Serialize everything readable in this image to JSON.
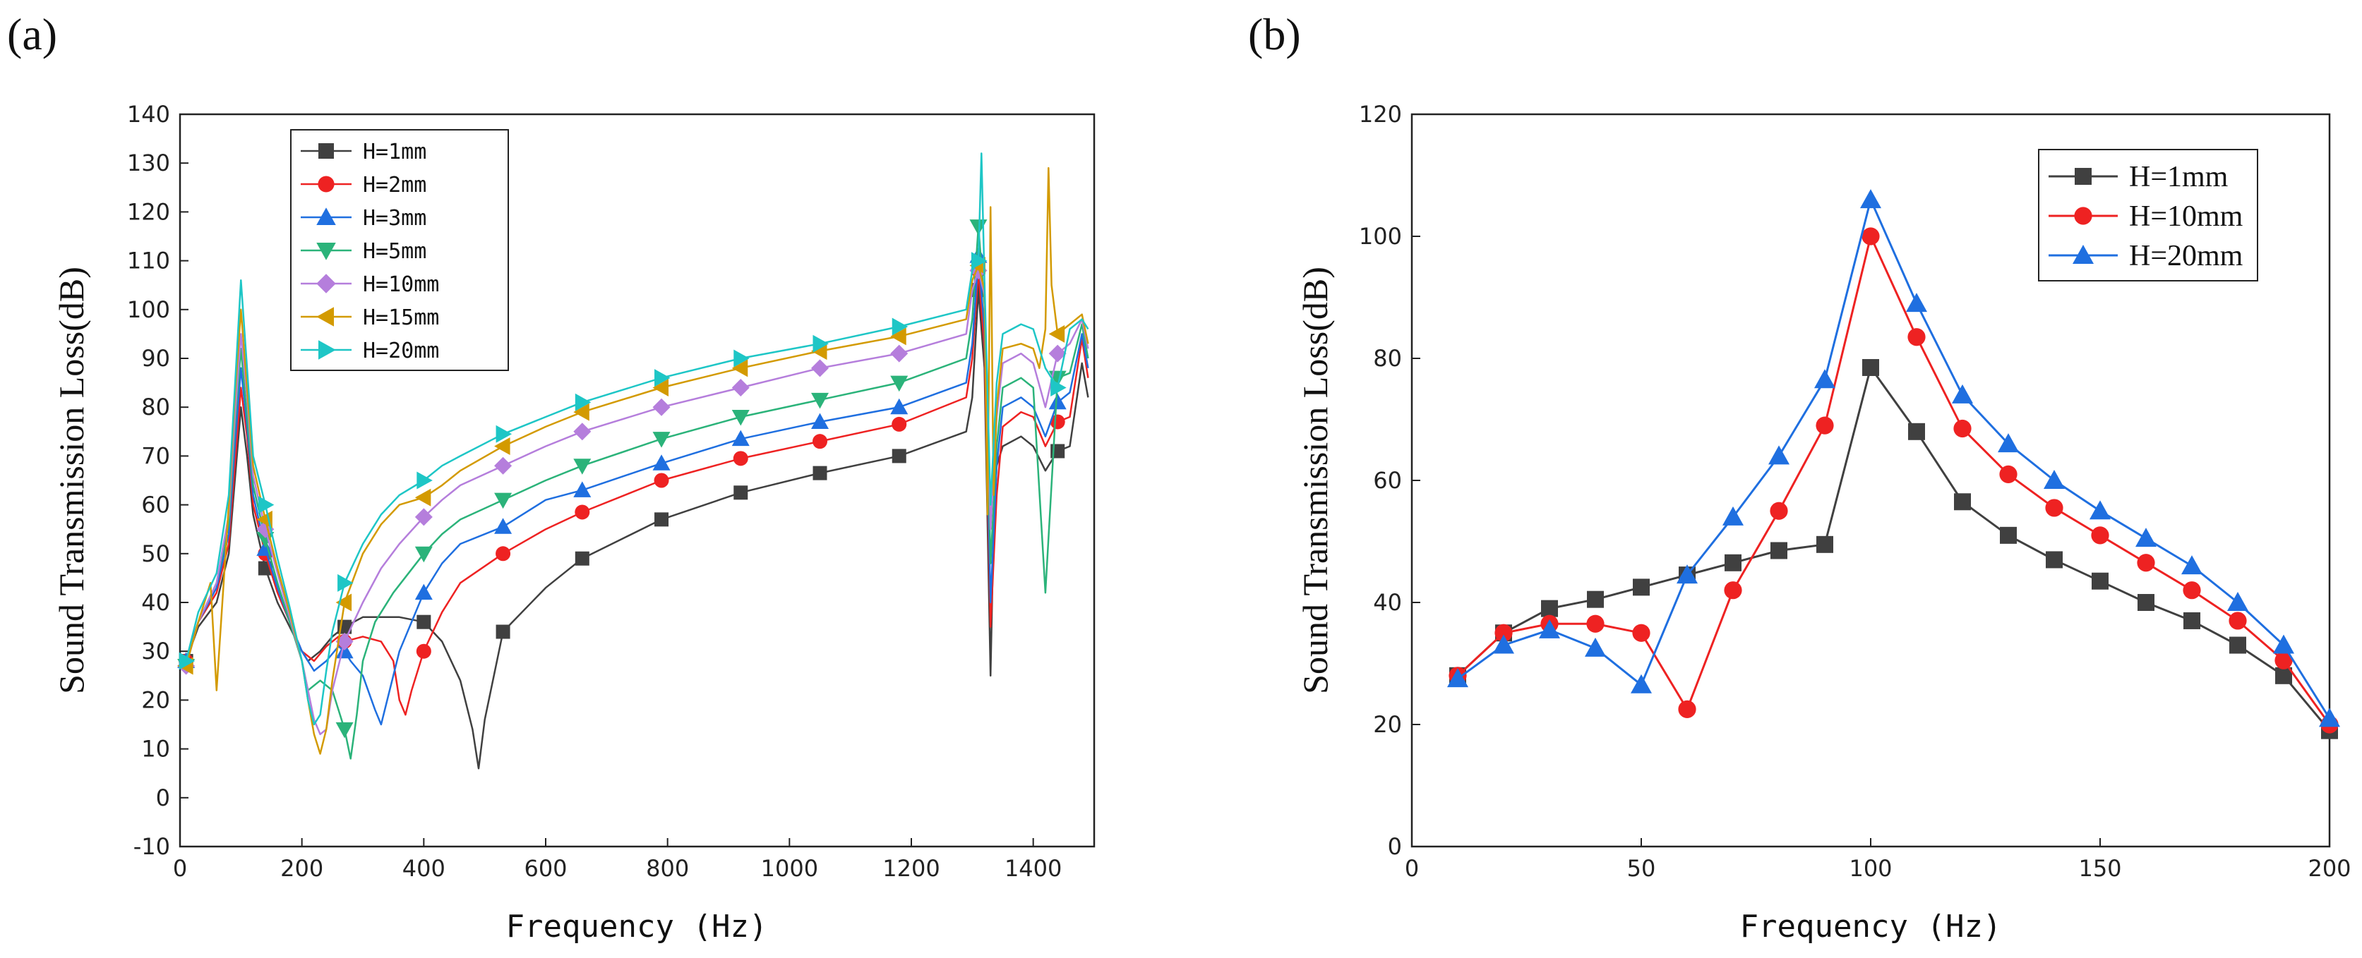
{
  "figure": {
    "panel_a_label": "(a)",
    "panel_b_label": "(b)"
  },
  "chart_data": [
    {
      "panel": "(a)",
      "type": "line",
      "xlabel": "Frequency (Hz)",
      "ylabel": "Sound Transmission Loss(dB)",
      "xlim": [
        0,
        1500
      ],
      "ylim": [
        -10,
        140
      ],
      "xticks": [
        0,
        200,
        400,
        600,
        800,
        1000,
        1200,
        1400
      ],
      "yticks": [
        -10,
        0,
        10,
        20,
        30,
        40,
        50,
        60,
        70,
        80,
        90,
        100,
        110,
        120,
        130,
        140
      ],
      "legend_position": "top-left",
      "marker_x": [
        10,
        140,
        270,
        400,
        530,
        660,
        790,
        920,
        1050,
        1180,
        1310,
        1440
      ],
      "series": [
        {
          "name": "H=1mm",
          "color": "#404040",
          "marker": "square",
          "x": [
            10,
            30,
            60,
            80,
            90,
            100,
            110,
            120,
            140,
            160,
            180,
            200,
            210,
            230,
            250,
            270,
            300,
            330,
            360,
            400,
            430,
            460,
            480,
            490,
            500,
            530,
            600,
            660,
            790,
            920,
            1050,
            1180,
            1290,
            1300,
            1310,
            1320,
            1330,
            1335,
            1340,
            1350,
            1380,
            1400,
            1420,
            1440,
            1460,
            1480,
            1490
          ],
          "y": [
            28,
            35,
            40,
            50,
            65,
            80,
            70,
            58,
            47,
            40,
            35,
            30,
            28,
            30,
            33,
            35,
            37,
            37,
            37,
            36,
            32,
            24,
            14,
            6,
            16,
            34,
            43,
            49,
            57,
            62.5,
            66.5,
            70,
            75,
            82,
            104,
            88,
            25,
            55,
            68,
            72,
            74,
            72,
            67,
            71,
            72,
            89,
            82
          ]
        },
        {
          "name": "H=2mm",
          "color": "#ee2222",
          "marker": "circle",
          "x": [
            10,
            30,
            60,
            80,
            90,
            100,
            110,
            120,
            140,
            160,
            180,
            200,
            220,
            240,
            260,
            270,
            300,
            330,
            350,
            360,
            370,
            380,
            400,
            430,
            460,
            530,
            600,
            660,
            790,
            920,
            1050,
            1180,
            1290,
            1300,
            1310,
            1320,
            1330,
            1340,
            1350,
            1380,
            1400,
            1420,
            1440,
            1460,
            1480,
            1490
          ],
          "y": [
            28,
            36,
            42,
            52,
            68,
            84,
            74,
            60,
            50,
            42,
            36,
            30,
            28,
            31,
            33,
            32,
            33,
            32,
            28,
            20,
            17,
            22,
            30,
            38,
            44,
            50,
            55,
            58.5,
            65,
            69.5,
            73,
            76.5,
            82,
            90,
            108,
            92,
            35,
            62,
            76,
            79,
            78,
            72,
            77,
            78,
            94,
            86
          ]
        },
        {
          "name": "H=3mm",
          "color": "#1f6fe0",
          "marker": "triangle-up",
          "x": [
            10,
            30,
            60,
            80,
            90,
            100,
            110,
            120,
            140,
            160,
            180,
            200,
            220,
            240,
            260,
            270,
            280,
            300,
            320,
            330,
            340,
            360,
            400,
            430,
            460,
            530,
            600,
            660,
            790,
            920,
            1050,
            1180,
            1290,
            1300,
            1310,
            1320,
            1330,
            1340,
            1350,
            1380,
            1400,
            1420,
            1440,
            1460,
            1480,
            1490
          ],
          "y": [
            28,
            36,
            43,
            54,
            72,
            88,
            76,
            62,
            51,
            43,
            36,
            30,
            26,
            28,
            31,
            30,
            28,
            25,
            18,
            15,
            20,
            30,
            42,
            48,
            52,
            55.5,
            61,
            63,
            68.5,
            73.5,
            77,
            80,
            85,
            93,
            111,
            96,
            40,
            68,
            80,
            82,
            80,
            74,
            81,
            83,
            95,
            88
          ]
        },
        {
          "name": "H=5mm",
          "color": "#2bb37a",
          "marker": "triangle-down",
          "x": [
            10,
            30,
            60,
            80,
            90,
            100,
            110,
            120,
            140,
            160,
            180,
            200,
            210,
            230,
            250,
            260,
            270,
            280,
            290,
            300,
            320,
            350,
            400,
            430,
            460,
            530,
            600,
            660,
            790,
            920,
            1050,
            1180,
            1290,
            1300,
            1310,
            1320,
            1330,
            1340,
            1350,
            1380,
            1400,
            1420,
            1440,
            1460,
            1480,
            1490
          ],
          "y": [
            27,
            36,
            44,
            56,
            76,
            92,
            78,
            64,
            53,
            44,
            36,
            28,
            22,
            24,
            22,
            18,
            14,
            8,
            17,
            28,
            36,
            42,
            50,
            54,
            57,
            61,
            65,
            68,
            73.5,
            78,
            81.5,
            85,
            90,
            98,
            117,
            101,
            48,
            72,
            84,
            86,
            84,
            42,
            86,
            87,
            97,
            90
          ]
        },
        {
          "name": "H=10mm",
          "color": "#b57edc",
          "marker": "diamond",
          "x": [
            10,
            30,
            60,
            80,
            90,
            100,
            110,
            120,
            140,
            160,
            180,
            200,
            210,
            220,
            230,
            240,
            250,
            270,
            300,
            330,
            360,
            400,
            430,
            460,
            530,
            600,
            660,
            790,
            920,
            1050,
            1180,
            1290,
            1300,
            1310,
            1320,
            1330,
            1340,
            1350,
            1380,
            1400,
            1420,
            1440,
            1460,
            1480,
            1490
          ],
          "y": [
            27,
            36,
            44,
            58,
            78,
            95,
            82,
            66,
            55,
            46,
            37,
            28,
            22,
            16,
            13,
            14,
            22,
            32,
            40,
            47,
            52,
            57.5,
            61,
            64,
            68,
            72,
            75,
            80,
            84,
            88,
            91,
            95,
            104,
            108,
            103,
            55,
            78,
            89,
            91,
            89,
            80,
            91,
            93,
            98,
            92
          ]
        },
        {
          "name": "H=15mm",
          "color": "#d39a00",
          "marker": "triangle-left",
          "x": [
            10,
            30,
            50,
            60,
            80,
            90,
            100,
            110,
            120,
            140,
            160,
            180,
            200,
            210,
            220,
            230,
            240,
            250,
            270,
            300,
            330,
            360,
            400,
            430,
            460,
            530,
            600,
            660,
            790,
            920,
            1050,
            1180,
            1290,
            1300,
            1310,
            1320,
            1325,
            1330,
            1335,
            1340,
            1350,
            1380,
            1400,
            1410,
            1420,
            1425,
            1430,
            1440,
            1460,
            1480,
            1490
          ],
          "y": [
            27,
            36,
            44,
            22,
            60,
            82,
            100,
            84,
            68,
            57,
            47,
            38,
            28,
            20,
            13,
            9,
            14,
            24,
            40,
            50,
            56,
            60,
            61.5,
            64,
            67,
            72,
            76,
            79,
            84,
            88,
            91.5,
            94.5,
            98,
            106,
            109,
            104,
            58,
            121,
            62,
            80,
            92,
            93,
            92,
            88,
            96,
            129,
            105,
            95,
            97,
            99,
            93
          ]
        },
        {
          "name": "H=20mm",
          "color": "#1ec6c6",
          "marker": "triangle-right",
          "x": [
            10,
            30,
            60,
            80,
            90,
            100,
            110,
            120,
            140,
            160,
            180,
            200,
            210,
            220,
            230,
            240,
            250,
            270,
            300,
            330,
            360,
            400,
            430,
            460,
            530,
            600,
            660,
            790,
            920,
            1050,
            1180,
            1290,
            1300,
            1310,
            1315,
            1320,
            1330,
            1340,
            1350,
            1380,
            1400,
            1420,
            1440,
            1460,
            1480,
            1490
          ],
          "y": [
            28,
            38,
            46,
            62,
            84,
            106,
            88,
            70,
            60,
            49,
            39,
            28,
            20,
            15,
            17,
            26,
            34,
            44,
            52,
            58,
            62,
            65,
            68,
            70,
            74.5,
            78,
            81,
            86,
            90,
            93,
            96.5,
            100,
            108,
            110,
            132,
            106,
            60,
            85,
            95,
            97,
            96,
            88,
            84,
            96,
            98,
            96
          ]
        }
      ]
    },
    {
      "panel": "(b)",
      "type": "line",
      "xlabel": "Frequency (Hz)",
      "ylabel": "Sound Transmission Loss(dB)",
      "xlim": [
        0,
        200
      ],
      "ylim": [
        0,
        120
      ],
      "xticks": [
        0,
        50,
        100,
        150,
        200
      ],
      "yticks": [
        0,
        20,
        40,
        60,
        80,
        100,
        120
      ],
      "legend_position": "top-right",
      "x": [
        10,
        20,
        30,
        40,
        50,
        60,
        70,
        80,
        90,
        100,
        110,
        120,
        130,
        140,
        150,
        160,
        170,
        180,
        190,
        200
      ],
      "series": [
        {
          "name": "H=1mm",
          "color": "#404040",
          "marker": "square",
          "values": [
            28,
            35,
            39,
            40.5,
            42.5,
            44.5,
            46.5,
            48.5,
            49.5,
            78.5,
            68,
            56.5,
            51,
            47,
            43.5,
            40,
            37,
            33,
            28,
            19
          ]
        },
        {
          "name": "H=10mm",
          "color": "#ee2222",
          "marker": "circle",
          "values": [
            28,
            35,
            36.5,
            36.5,
            35,
            22.5,
            42,
            55,
            69,
            100,
            83.5,
            68.5,
            61,
            55.5,
            51,
            46.5,
            42,
            37,
            30.5,
            20
          ]
        },
        {
          "name": "H=20mm",
          "color": "#1f6fe0",
          "marker": "triangle-up",
          "values": [
            27.5,
            33,
            35.5,
            32.5,
            26.5,
            44.5,
            54,
            64,
            76.5,
            106,
            89,
            74,
            66,
            60,
            55,
            50.5,
            46,
            40,
            33,
            21
          ]
        }
      ]
    }
  ]
}
